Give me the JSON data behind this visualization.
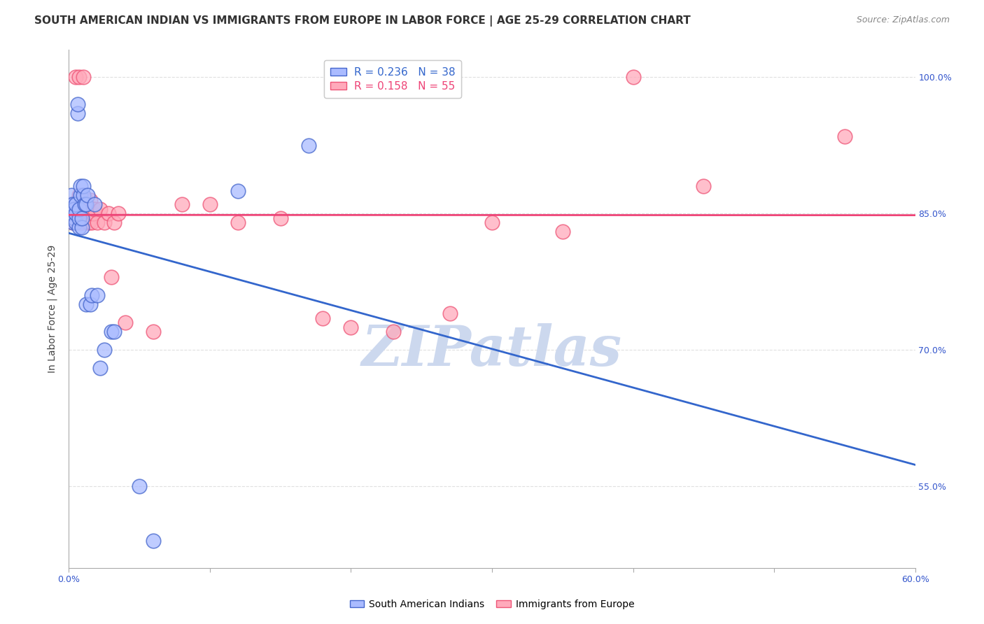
{
  "title": "SOUTH AMERICAN INDIAN VS IMMIGRANTS FROM EUROPE IN LABOR FORCE | AGE 25-29 CORRELATION CHART",
  "source": "Source: ZipAtlas.com",
  "ylabel": "In Labor Force | Age 25-29",
  "xlim": [
    0.0,
    0.6
  ],
  "ylim": [
    0.46,
    1.03
  ],
  "xticks": [
    0.0,
    0.1,
    0.2,
    0.3,
    0.4,
    0.5,
    0.6
  ],
  "xticklabels": [
    "0.0%",
    "",
    "",
    "",
    "",
    "",
    "60.0%"
  ],
  "ytick_positions": [
    0.55,
    0.7,
    0.85,
    1.0
  ],
  "ytick_labels": [
    "55.0%",
    "70.0%",
    "85.0%",
    "100.0%"
  ],
  "title_fontsize": 11,
  "source_fontsize": 9,
  "axis_label_fontsize": 10,
  "tick_fontsize": 9,
  "legend_fontsize": 11,
  "blue_color": "#aabbff",
  "pink_color": "#ffaabb",
  "blue_edge_color": "#4466cc",
  "pink_edge_color": "#ee5577",
  "blue_line_color": "#3366cc",
  "pink_line_color": "#ee4477",
  "blue_r": 0.236,
  "blue_n": 38,
  "pink_r": 0.158,
  "pink_n": 55,
  "blue_scatter_x": [
    0.001,
    0.002,
    0.002,
    0.003,
    0.003,
    0.003,
    0.004,
    0.004,
    0.005,
    0.005,
    0.005,
    0.006,
    0.006,
    0.007,
    0.007,
    0.007,
    0.008,
    0.008,
    0.009,
    0.009,
    0.01,
    0.01,
    0.011,
    0.012,
    0.012,
    0.013,
    0.015,
    0.016,
    0.018,
    0.02,
    0.022,
    0.025,
    0.03,
    0.032,
    0.05,
    0.06,
    0.12,
    0.17
  ],
  "blue_scatter_y": [
    0.855,
    0.86,
    0.87,
    0.84,
    0.85,
    0.86,
    0.845,
    0.855,
    0.84,
    0.85,
    0.86,
    0.96,
    0.97,
    0.835,
    0.845,
    0.855,
    0.87,
    0.88,
    0.835,
    0.845,
    0.87,
    0.88,
    0.86,
    0.86,
    0.75,
    0.87,
    0.75,
    0.76,
    0.86,
    0.76,
    0.68,
    0.7,
    0.72,
    0.72,
    0.55,
    0.49,
    0.875,
    0.925
  ],
  "pink_scatter_x": [
    0.001,
    0.002,
    0.003,
    0.003,
    0.004,
    0.004,
    0.005,
    0.005,
    0.005,
    0.006,
    0.006,
    0.006,
    0.007,
    0.007,
    0.008,
    0.008,
    0.009,
    0.009,
    0.01,
    0.01,
    0.01,
    0.011,
    0.011,
    0.012,
    0.012,
    0.013,
    0.013,
    0.014,
    0.015,
    0.015,
    0.016,
    0.017,
    0.018,
    0.02,
    0.022,
    0.025,
    0.028,
    0.03,
    0.032,
    0.035,
    0.04,
    0.06,
    0.08,
    0.1,
    0.12,
    0.15,
    0.18,
    0.2,
    0.23,
    0.27,
    0.3,
    0.35,
    0.4,
    0.45,
    0.55
  ],
  "pink_scatter_y": [
    0.85,
    0.86,
    0.84,
    0.855,
    0.845,
    0.86,
    0.85,
    0.86,
    1.0,
    0.84,
    0.85,
    0.86,
    0.87,
    1.0,
    0.845,
    0.855,
    0.84,
    0.85,
    0.845,
    0.855,
    1.0,
    0.845,
    0.855,
    0.855,
    0.865,
    0.84,
    0.855,
    0.84,
    0.85,
    0.865,
    0.84,
    0.85,
    0.855,
    0.84,
    0.855,
    0.84,
    0.85,
    0.78,
    0.84,
    0.85,
    0.73,
    0.72,
    0.86,
    0.86,
    0.84,
    0.845,
    0.735,
    0.725,
    0.72,
    0.74,
    0.84,
    0.83,
    1.0,
    0.88,
    0.935
  ],
  "watermark_text": "ZIPatlas",
  "watermark_color": "#ccd8ee",
  "background_color": "#ffffff",
  "grid_color": "#e0e0e0"
}
